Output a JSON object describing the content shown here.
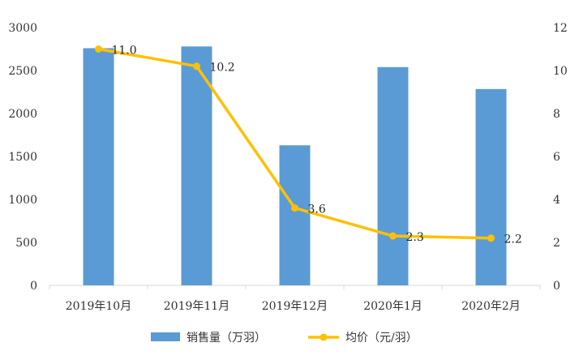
{
  "chart_data": {
    "type": "bar+line",
    "categories": [
      "2019年10月",
      "2019年11月",
      "2019年12月",
      "2020年1月",
      "2020年2月"
    ],
    "series": [
      {
        "name": "销售量（万羽）",
        "type": "bar",
        "axis": "left",
        "values": [
          2760,
          2780,
          1630,
          2540,
          2285
        ],
        "color": "#5B9BD5"
      },
      {
        "name": "均价（元/羽）",
        "type": "line",
        "axis": "right",
        "values": [
          11.0,
          10.2,
          3.6,
          2.3,
          2.2
        ],
        "labels": [
          "11.0",
          "10.2",
          "3.6",
          "2.3",
          "2.2"
        ],
        "color": "#FFC000"
      }
    ],
    "y_left": {
      "min": 0,
      "max": 3000,
      "ticks": [
        "0",
        "500",
        "1000",
        "1500",
        "2000",
        "2500",
        "3000"
      ]
    },
    "y_right": {
      "min": 0,
      "max": 12,
      "ticks": [
        "0",
        "2",
        "4",
        "6",
        "8",
        "10",
        "12"
      ]
    },
    "legend": "bottom",
    "grid": false
  }
}
